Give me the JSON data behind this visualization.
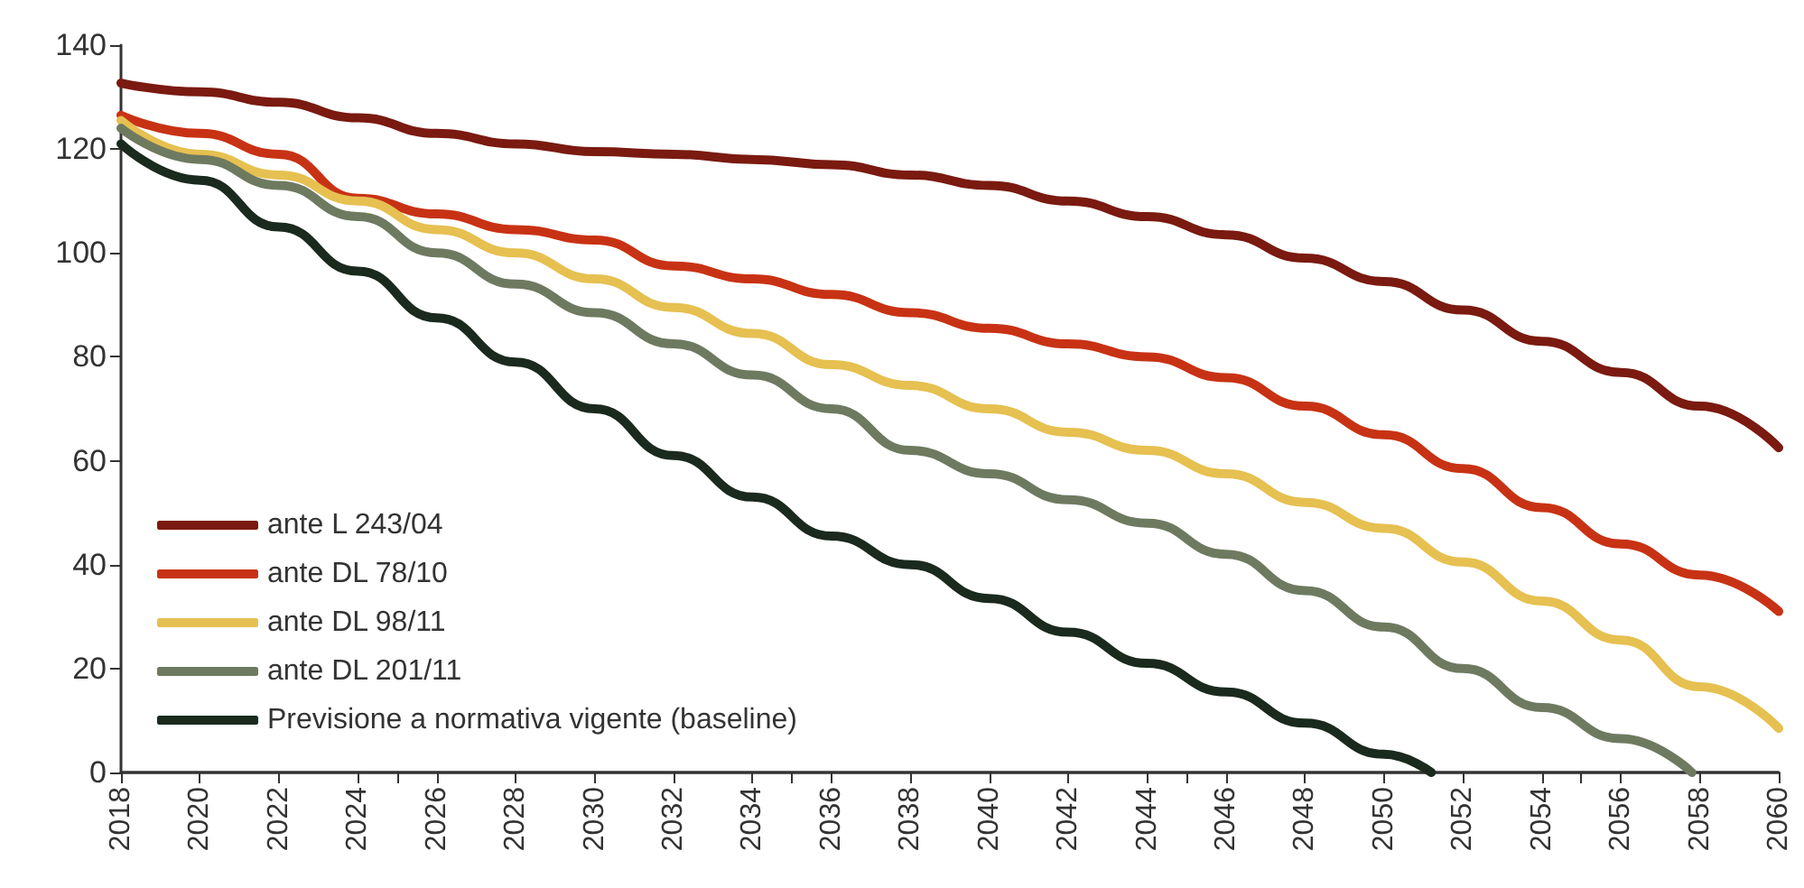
{
  "chart_data": {
    "type": "line",
    "xlim": [
      2018,
      2060
    ],
    "xticks": [
      2018,
      2020,
      2022,
      2024,
      2026,
      2028,
      2030,
      2032,
      2034,
      2036,
      2038,
      2040,
      2042,
      2044,
      2046,
      2048,
      2050,
      2052,
      2054,
      2056,
      2058,
      2060
    ],
    "ylim": [
      0,
      140
    ],
    "yticks": [
      0,
      20,
      40,
      60,
      80,
      100,
      120,
      140
    ],
    "grid": false,
    "legend": "bottom left",
    "marker": "none",
    "line_style": "solid",
    "series": [
      {
        "name": "ante L 243/04",
        "color": "#7a1a10",
        "x": [
          2018,
          2020,
          2022,
          2024,
          2026,
          2028,
          2030,
          2032,
          2034,
          2036,
          2038,
          2040,
          2042,
          2044,
          2046,
          2048,
          2050,
          2052,
          2054,
          2056,
          2058,
          2060
        ],
        "values": [
          132.7,
          131,
          129,
          126,
          123,
          121,
          119.5,
          119,
          118,
          117,
          115,
          113,
          110,
          107,
          103.5,
          99,
          94.5,
          89,
          83,
          77,
          70.5,
          62.5
        ]
      },
      {
        "name": "ante DL 78/10",
        "color": "#c83214",
        "x": [
          2018,
          2020,
          2022,
          2024,
          2026,
          2028,
          2030,
          2032,
          2034,
          2036,
          2038,
          2040,
          2042,
          2044,
          2046,
          2048,
          2050,
          2052,
          2054,
          2056,
          2058,
          2060
        ],
        "values": [
          126.5,
          123,
          119,
          110.5,
          107.5,
          104.5,
          102.5,
          97.5,
          95,
          92,
          88.5,
          85.5,
          82.5,
          80,
          76,
          70.5,
          65,
          58.5,
          51,
          44,
          38,
          31
        ]
      },
      {
        "name": "ante DL 98/11",
        "color": "#e6c050",
        "x": [
          2018,
          2020,
          2022,
          2024,
          2026,
          2028,
          2030,
          2032,
          2034,
          2036,
          2038,
          2040,
          2042,
          2044,
          2046,
          2048,
          2050,
          2052,
          2054,
          2056,
          2058,
          2060
        ],
        "values": [
          125.5,
          119,
          115,
          110,
          104.5,
          100,
          95,
          89.5,
          84.5,
          78.5,
          74.5,
          70,
          65.5,
          62,
          57.5,
          52,
          47,
          40.5,
          33,
          25.5,
          16.5,
          8.5
        ]
      },
      {
        "name": "ante DL 201/11",
        "color": "#6e7a60",
        "x": [
          2018,
          2020,
          2022,
          2024,
          2026,
          2028,
          2030,
          2032,
          2034,
          2036,
          2038,
          2040,
          2042,
          2044,
          2046,
          2048,
          2050,
          2052,
          2054,
          2056,
          2057.8
        ],
        "values": [
          124,
          118,
          113,
          107,
          100,
          94,
          88.5,
          82.5,
          76.5,
          70,
          62,
          57.5,
          52.5,
          48,
          42,
          35,
          28,
          20,
          12.5,
          6.5,
          0
        ]
      },
      {
        "name": "Previsione a normativa vigente (baseline)",
        "color": "#1a2a1e",
        "x": [
          2018,
          2020,
          2022,
          2024,
          2026,
          2028,
          2030,
          2032,
          2034,
          2036,
          2038,
          2040,
          2042,
          2044,
          2046,
          2048,
          2050,
          2051.2
        ],
        "values": [
          121,
          114,
          105,
          96.5,
          87.5,
          79,
          70,
          61,
          53,
          45.5,
          40,
          33.5,
          27,
          21,
          15.5,
          9.5,
          3.5,
          0
        ]
      }
    ]
  }
}
